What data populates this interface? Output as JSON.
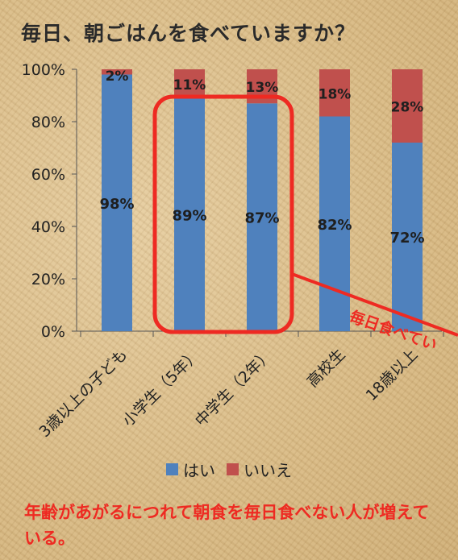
{
  "title": "毎日、朝ごはんを食べていますか？",
  "caption": "年齢があがるにつれて朝食を毎日食べない人が増えている。",
  "annotation": {
    "text": "毎日食べてい",
    "color": "#ee2a22"
  },
  "colors": {
    "yes": "#4f81bd",
    "no": "#c0504d",
    "label": "#1f1f1f",
    "highlight": "#ee2a22"
  },
  "chart_data": {
    "type": "bar",
    "stacked": true,
    "categories": [
      "3歳以上の子ども",
      "小学生（5年）",
      "中学生（2年）",
      "高校生",
      "18歳以上"
    ],
    "series": [
      {
        "name": "はい",
        "values": [
          98,
          89,
          87,
          82,
          72
        ],
        "labels": [
          "98%",
          "89%",
          "87%",
          "82%",
          "72%"
        ],
        "color": "#4f81bd"
      },
      {
        "name": "いいえ",
        "values": [
          2,
          11,
          13,
          18,
          28
        ],
        "labels": [
          "2%",
          "11%",
          "13%",
          "18%",
          "28%"
        ],
        "color": "#c0504d"
      }
    ],
    "yticks": [
      "0%",
      "20%",
      "40%",
      "60%",
      "80%",
      "100%"
    ],
    "ylim": [
      0,
      100
    ],
    "legend_position": "bottom",
    "grid": false
  }
}
